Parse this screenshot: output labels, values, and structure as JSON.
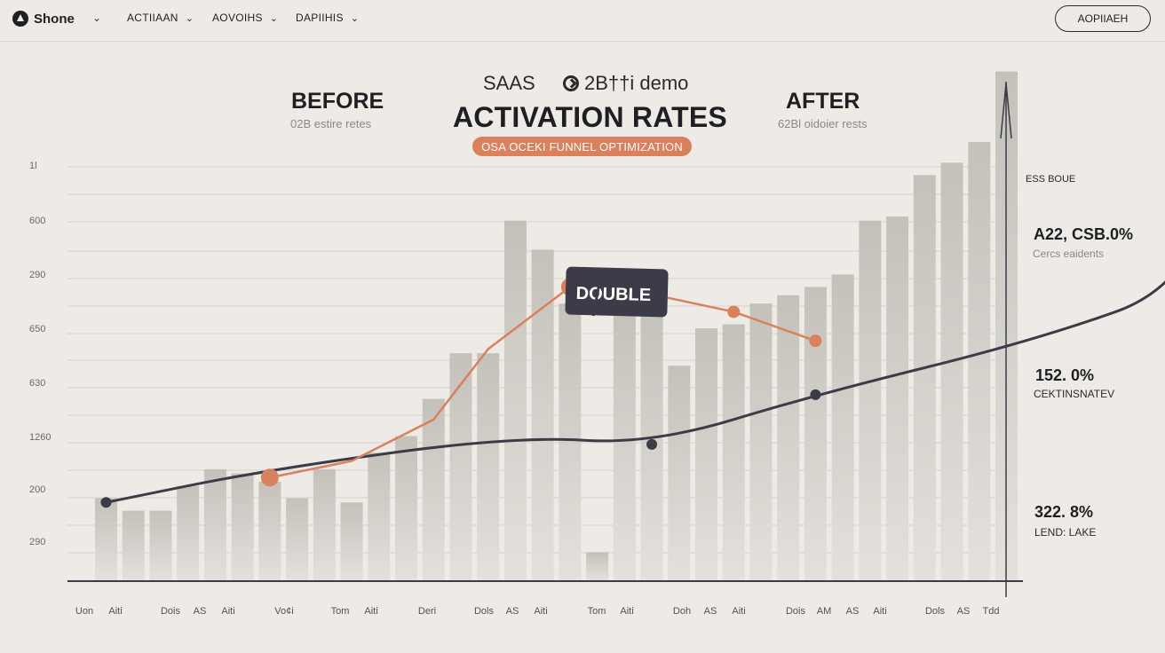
{
  "nav": {
    "brand": "Shone",
    "items": [
      {
        "label": "ACTIIAAN"
      },
      {
        "label": "AOVOIHS"
      },
      {
        "label": "DAPIIHIS"
      }
    ],
    "button_label": "AOPIIAEH"
  },
  "header": {
    "saas": "SAAS",
    "demo": "2B††i demo",
    "title": "ACTIVATION RATES",
    "pill": "OSA OCEKI FUNNEL OPTIMIZATION",
    "before": "BEFORE",
    "before_sub": "02B estire retes",
    "after": "AFTER",
    "after_sub": "62Bl oidoier rests"
  },
  "stats": {
    "header": "ESS BOUE",
    "items": [
      {
        "value": "A22, CSB.0%",
        "label": "Cercs eaidents"
      },
      {
        "value": "152. 0%",
        "label": "CEKTINSNATEV"
      },
      {
        "value": "322. 8%",
        "label": "LEND: LAKE"
      }
    ]
  },
  "colors": {
    "background": "#eeebe6",
    "bar": "#cbc8c2",
    "dark_line": "#3c3c48",
    "orange": "#d9805c"
  },
  "chart_data": {
    "type": "bar+line",
    "title": "ACTIVATION RATES",
    "y_tick_labels": [
      "1l",
      "600",
      "290",
      "650",
      "630",
      "1260",
      "200",
      "290"
    ],
    "x_tick_labels": [
      "Uon",
      "Aiti",
      "Dois",
      "AS",
      "Aiti",
      "Vo¢i",
      "Tom",
      "Aiti",
      "Deri",
      "Dols",
      "AS",
      "Aiti",
      "Tom",
      "Aiti",
      "Doh",
      "AS",
      "Aiti",
      "Dois",
      "AM",
      "AS",
      "Aiti",
      "Dols",
      "AS",
      "Tdd"
    ],
    "ylim": [
      0,
      100
    ],
    "bars": [
      20,
      17,
      17,
      23,
      27,
      26,
      24,
      20,
      27,
      19,
      31,
      35,
      44,
      55,
      55,
      87,
      80,
      67,
      7,
      67,
      66,
      52,
      61,
      62,
      67,
      69,
      71,
      74,
      87,
      88,
      98,
      101,
      106,
      123
    ],
    "series": [
      {
        "name": "trend",
        "color": "#3c3c48",
        "x": [
          0,
          6,
          15,
          20,
          26,
          34,
          40
        ],
        "values": [
          19,
          27,
          35,
          33,
          45,
          58,
          72
        ],
        "markers": [
          0,
          20,
          26
        ],
        "arrow_end": [
          41.3,
          122
        ]
      },
      {
        "name": "optimized",
        "color": "#d9805c",
        "x": [
          6,
          9,
          12,
          14,
          17,
          18,
          23,
          26
        ],
        "values": [
          25,
          29,
          39,
          56,
          71,
          72,
          65,
          58
        ],
        "markers": [
          6,
          17,
          23,
          26
        ]
      }
    ],
    "annotations": [
      {
        "text": "DOUBLE",
        "at_series": "optimized",
        "at_index": 5
      }
    ]
  }
}
